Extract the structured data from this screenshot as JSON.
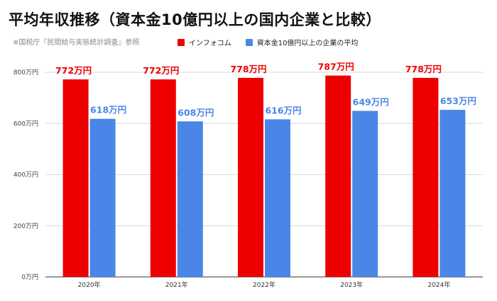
{
  "title": "平均年収推移（資本金10億円以上の国内企業と比較）",
  "source_note": "※国税庁『民間給与実態統計調査』参照",
  "chart_data": {
    "type": "bar",
    "categories": [
      "2020年",
      "2021年",
      "2022年",
      "2023年",
      "2024年"
    ],
    "series": [
      {
        "name": "インフォコム",
        "color": "#ee0000",
        "label_color": "#ee0000",
        "values": [
          772,
          772,
          778,
          787,
          778
        ],
        "data_labels": [
          "772万円",
          "772万円",
          "778万円",
          "787万円",
          "778万円"
        ]
      },
      {
        "name": "資本金10億円以上の企業の平均",
        "color": "#4a86e8",
        "label_color": "#4a86e8",
        "values": [
          618,
          608,
          616,
          649,
          653
        ],
        "data_labels": [
          "618万円",
          "608万円",
          "616万円",
          "649万円",
          "653万円"
        ]
      }
    ],
    "ylim": [
      0,
      800
    ],
    "yticks": [
      0,
      200,
      400,
      600,
      800
    ],
    "ytick_labels": [
      "0万円",
      "200万円",
      "400万円",
      "600万円",
      "800万円"
    ],
    "grid": true,
    "legend_position": "top"
  }
}
